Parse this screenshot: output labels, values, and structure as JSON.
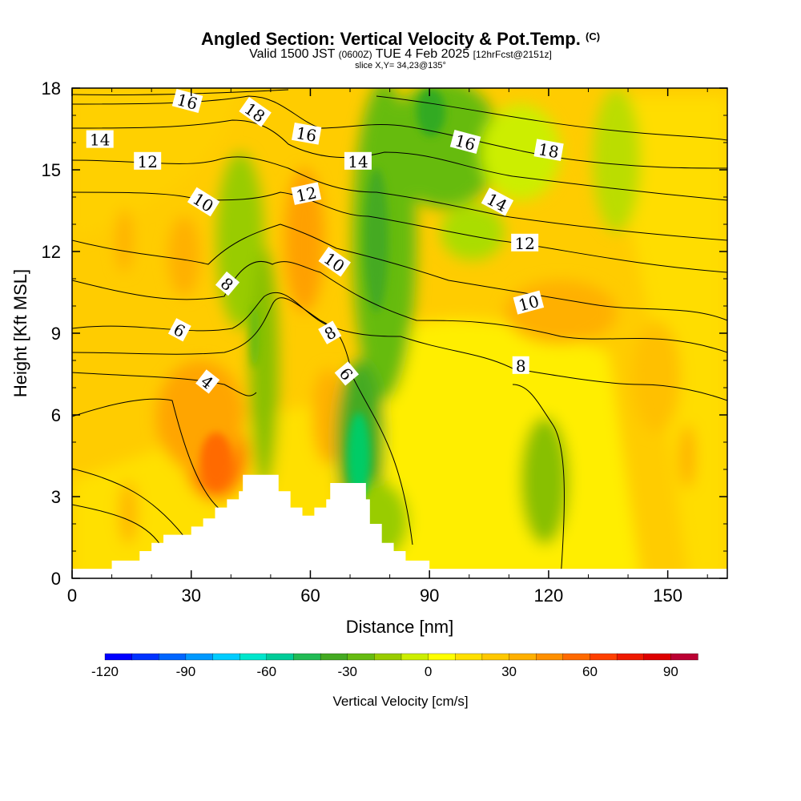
{
  "title": {
    "main": "Angled Section: Vertical Velocity & Pot.Temp.",
    "mark": "(C)",
    "valid_prefix": "Valid 1500 JST",
    "utc": "(0600Z)",
    "date": "TUE 4 Feb 2025",
    "fcst": "[12hrFcst@2151z]",
    "slice": "slice X,Y= 34,23@135°"
  },
  "colors": {
    "ocean": "#ffffff",
    "contour": "#000000",
    "colorbar": [
      "#0000ff",
      "#0033ff",
      "#0066ff",
      "#0099ff",
      "#00ccff",
      "#00e6cc",
      "#00cc99",
      "#22bb55",
      "#44aa22",
      "#66bb11",
      "#99cc00",
      "#ccee00",
      "#ffff00",
      "#ffe000",
      "#ffc800",
      "#ffb000",
      "#ff9000",
      "#ff6a00",
      "#ff4000",
      "#ee1a00",
      "#dd0000",
      "#bb0033",
      "#990066",
      "#660099"
    ]
  },
  "chart_data": {
    "type": "heatmap",
    "title": "Angled Section: Vertical Velocity & Pot.Temp.",
    "xlabel": "Distance [nm]",
    "ylabel": "Height [Kft MSL]",
    "xlim": [
      0,
      165
    ],
    "ylim": [
      0,
      18
    ],
    "xticks": [
      0,
      30,
      60,
      90,
      120,
      150
    ],
    "yticks": [
      0,
      3,
      6,
      9,
      12,
      15,
      18
    ],
    "colorbar": {
      "label": "Vertical Velocity [cm/s]",
      "min": -120,
      "max": 100,
      "step": 10,
      "ticks": [
        -120,
        -90,
        -60,
        -30,
        0,
        30,
        60,
        90
      ]
    },
    "terrain_top_kft": [
      {
        "x": 0,
        "y": 0.35
      },
      {
        "x": 10,
        "y": 0.65
      },
      {
        "x": 17,
        "y": 1.0
      },
      {
        "x": 20,
        "y": 1.3
      },
      {
        "x": 23,
        "y": 1.6
      },
      {
        "x": 30,
        "y": 1.9
      },
      {
        "x": 33,
        "y": 2.2
      },
      {
        "x": 36,
        "y": 2.6
      },
      {
        "x": 39,
        "y": 2.9
      },
      {
        "x": 42,
        "y": 3.2
      },
      {
        "x": 43,
        "y": 3.8
      },
      {
        "x": 49,
        "y": 3.8
      },
      {
        "x": 52,
        "y": 3.2
      },
      {
        "x": 55,
        "y": 2.6
      },
      {
        "x": 58,
        "y": 2.3
      },
      {
        "x": 61,
        "y": 2.6
      },
      {
        "x": 64,
        "y": 2.9
      },
      {
        "x": 65,
        "y": 3.5
      },
      {
        "x": 71,
        "y": 3.5
      },
      {
        "x": 74,
        "y": 2.9
      },
      {
        "x": 75,
        "y": 2.0
      },
      {
        "x": 78,
        "y": 1.3
      },
      {
        "x": 81,
        "y": 1.0
      },
      {
        "x": 84,
        "y": 0.65
      },
      {
        "x": 90,
        "y": 0.35
      },
      {
        "x": 165,
        "y": 0.35
      }
    ],
    "pot_temp_labels": [
      {
        "value": "4",
        "x": 34,
        "y": 7.2,
        "angle": 38
      },
      {
        "value": "6",
        "x": 27,
        "y": 9.1,
        "angle": 28
      },
      {
        "value": "8",
        "x": 39,
        "y": 10.8,
        "angle": 40
      },
      {
        "value": "10",
        "x": 33,
        "y": 13.8,
        "angle": 32
      },
      {
        "value": "12",
        "x": 19,
        "y": 15.3,
        "angle": 0
      },
      {
        "value": "14",
        "x": 7,
        "y": 16.1,
        "angle": 0
      },
      {
        "value": "16",
        "x": 29,
        "y": 17.5,
        "angle": 15
      },
      {
        "value": "18",
        "x": 46,
        "y": 17.1,
        "angle": 35
      },
      {
        "value": "16",
        "x": 59,
        "y": 16.3,
        "angle": 10
      },
      {
        "value": "12",
        "x": 59,
        "y": 14.1,
        "angle": -12
      },
      {
        "value": "14",
        "x": 72,
        "y": 15.3,
        "angle": 0
      },
      {
        "value": "10",
        "x": 66,
        "y": 11.6,
        "angle": 35
      },
      {
        "value": "8",
        "x": 65,
        "y": 9.0,
        "angle": -30
      },
      {
        "value": "6",
        "x": 69,
        "y": 7.5,
        "angle": 50
      },
      {
        "value": "16",
        "x": 99,
        "y": 16.0,
        "angle": 15
      },
      {
        "value": "14",
        "x": 107,
        "y": 13.8,
        "angle": 28
      },
      {
        "value": "12",
        "x": 114,
        "y": 12.3,
        "angle": 0
      },
      {
        "value": "18",
        "x": 120,
        "y": 15.7,
        "angle": 10
      },
      {
        "value": "10",
        "x": 115,
        "y": 10.1,
        "angle": -15
      },
      {
        "value": "8",
        "x": 113,
        "y": 7.8,
        "angle": 0
      }
    ]
  }
}
